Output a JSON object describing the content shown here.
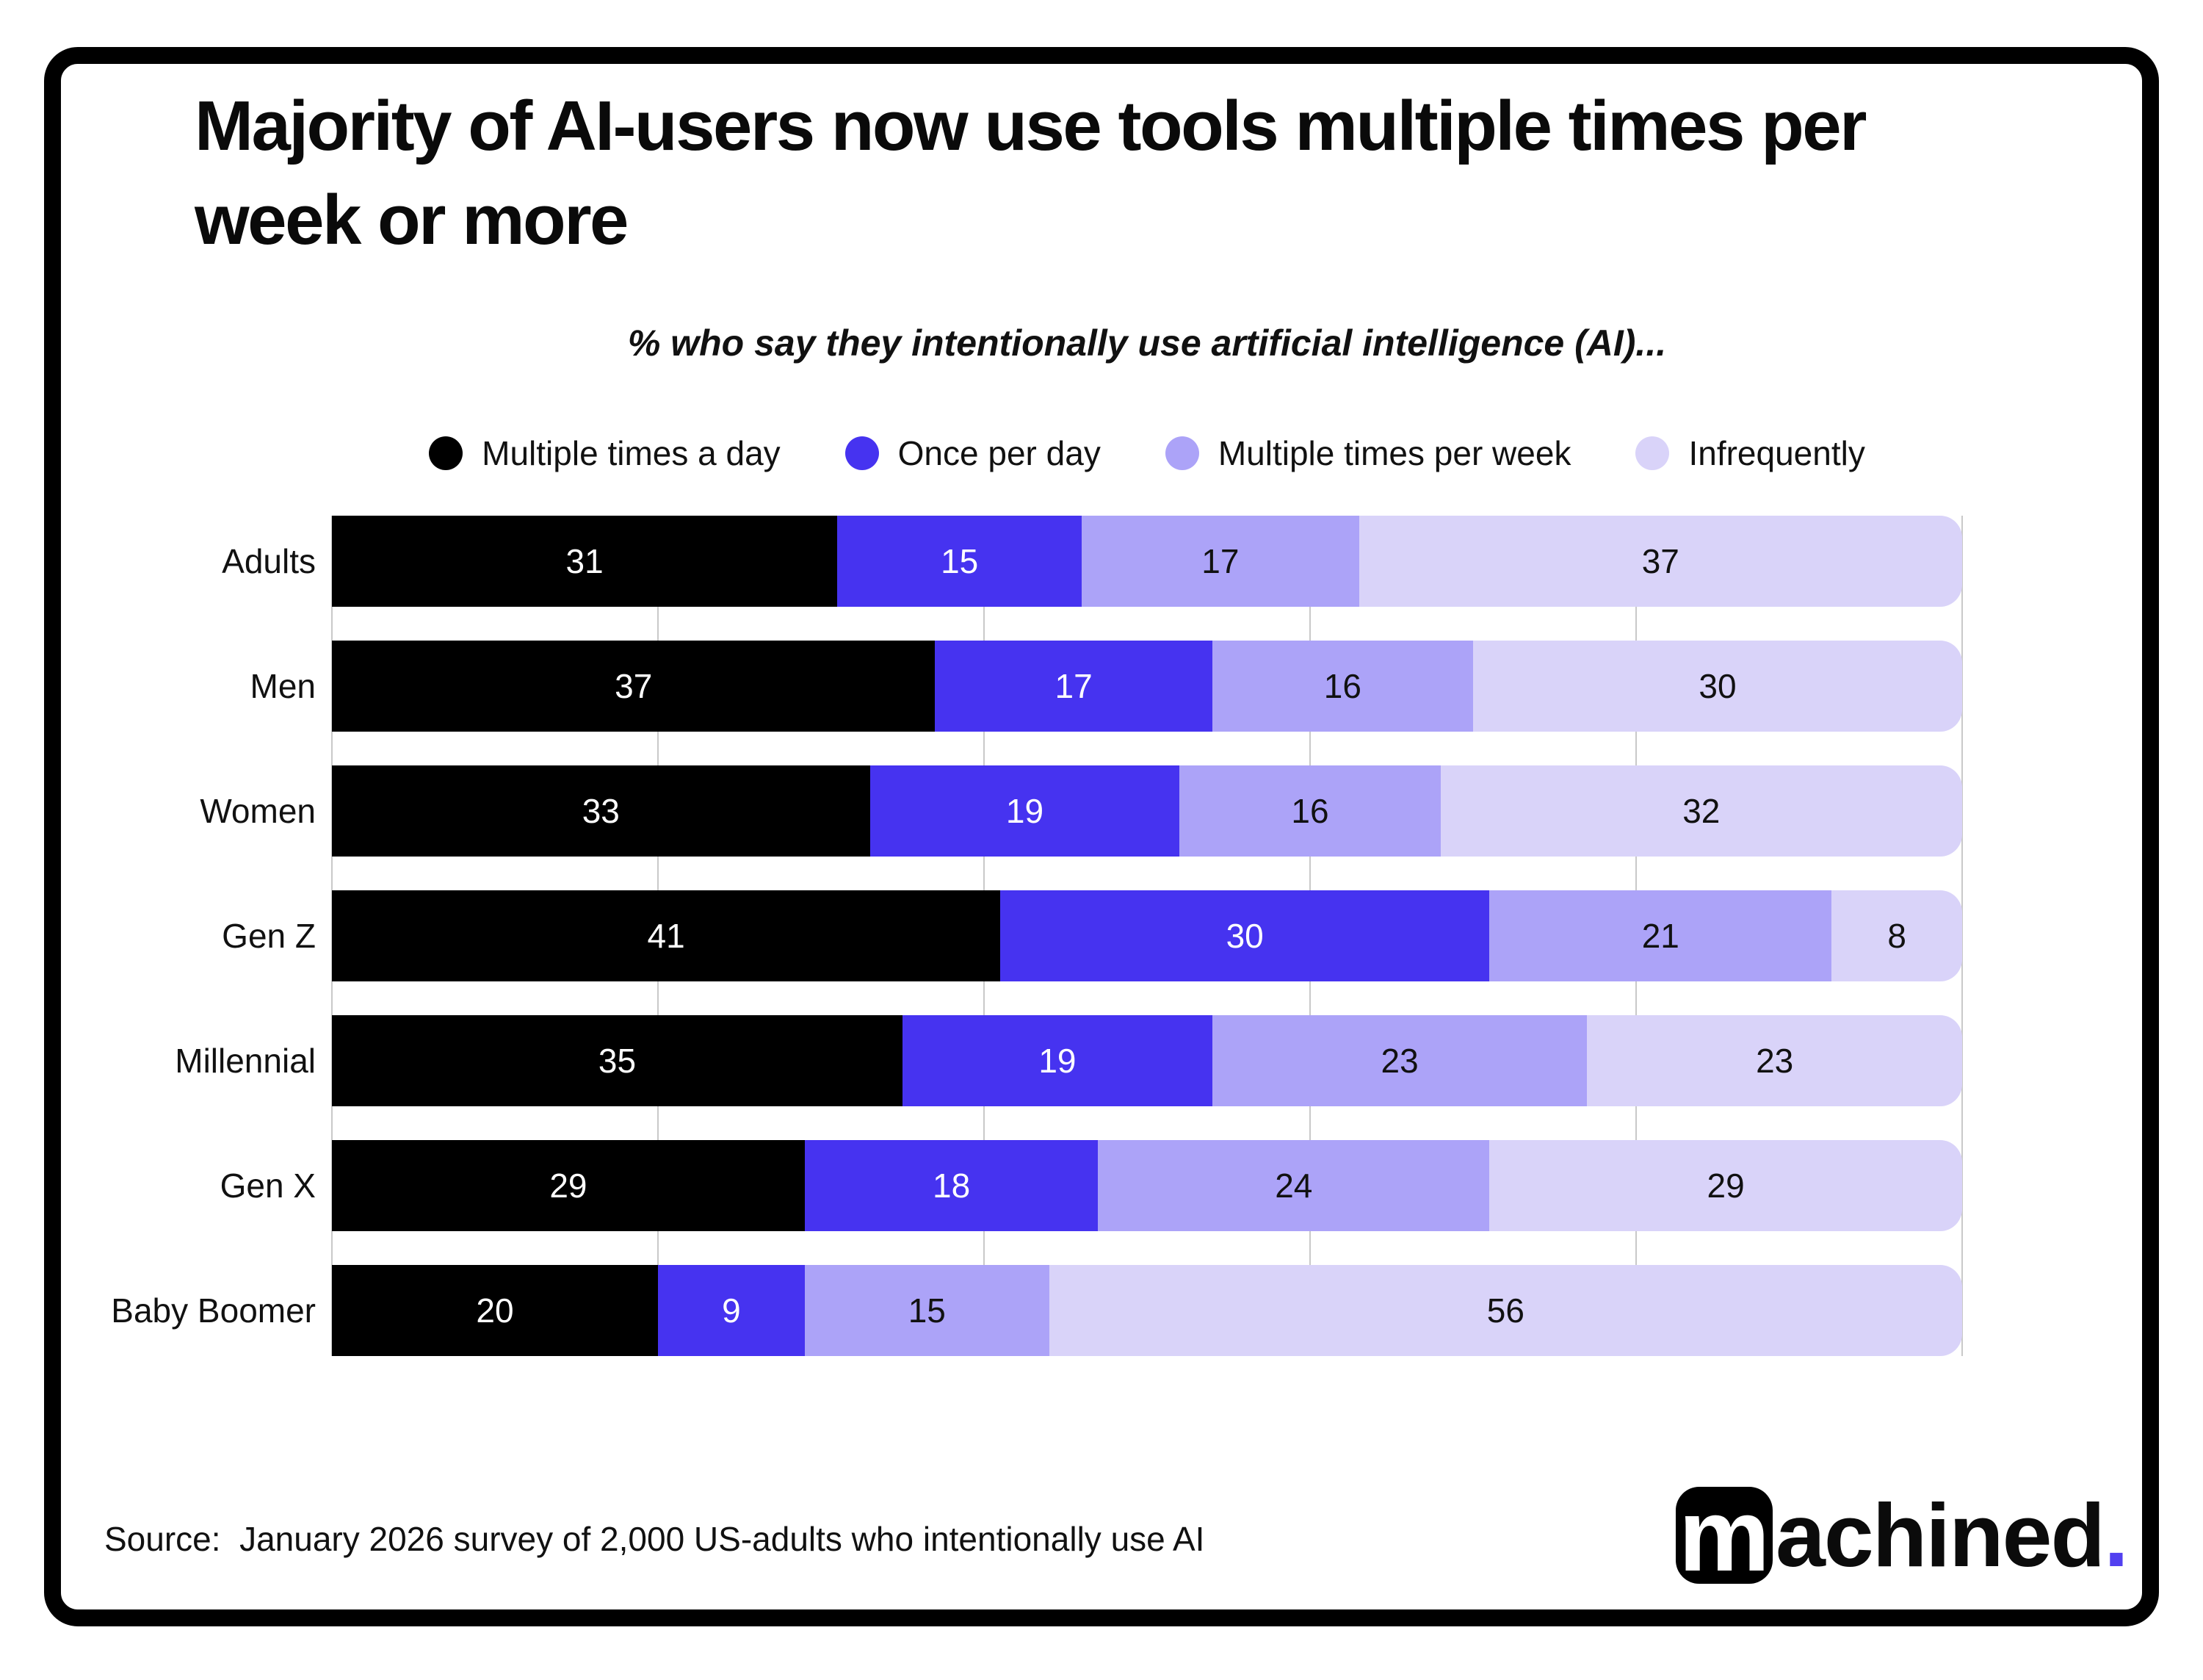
{
  "logo": {
    "mark": "m",
    "text": "achined",
    "dot": "."
  },
  "colors": {
    "series_black": "#000000",
    "series_blue": "#4633F0",
    "series_lavender": "#ACA3F8",
    "series_light_lavender": "#D9D3F9",
    "logo_dot": "#5240F0",
    "gridline": "#C9C9C9"
  },
  "chart_data": {
    "type": "bar",
    "stacked": true,
    "orientation": "horizontal",
    "title": "Majority of AI-users now use tools multiple times per week or more",
    "subtitle": "% who say they intentionally use artificial intelligence (AI)...",
    "source": "Source:  January 2026 survey of 2,000 US-adults who intentionally use AI",
    "xlim": [
      0,
      100
    ],
    "grid": "vertical lines every 20%",
    "legend_position": "top",
    "categories": [
      "Adults",
      "Men",
      "Women",
      "Gen Z",
      "Millennial",
      "Gen X",
      "Baby Boomer"
    ],
    "series": [
      {
        "name": "Multiple times a day",
        "color": "#000000",
        "text_color": "#FFFFFF",
        "values": [
          31,
          37,
          33,
          41,
          35,
          29,
          20
        ]
      },
      {
        "name": "Once per day",
        "color": "#4633F0",
        "text_color": "#FFFFFF",
        "values": [
          15,
          17,
          19,
          30,
          19,
          18,
          9
        ]
      },
      {
        "name": "Multiple times per week",
        "color": "#ACA3F8",
        "text_color": "#111111",
        "values": [
          17,
          16,
          16,
          21,
          23,
          24,
          15
        ]
      },
      {
        "name": "Infrequently",
        "color": "#D9D3F9",
        "text_color": "#111111",
        "values": [
          37,
          30,
          32,
          8,
          23,
          29,
          56
        ]
      }
    ]
  }
}
